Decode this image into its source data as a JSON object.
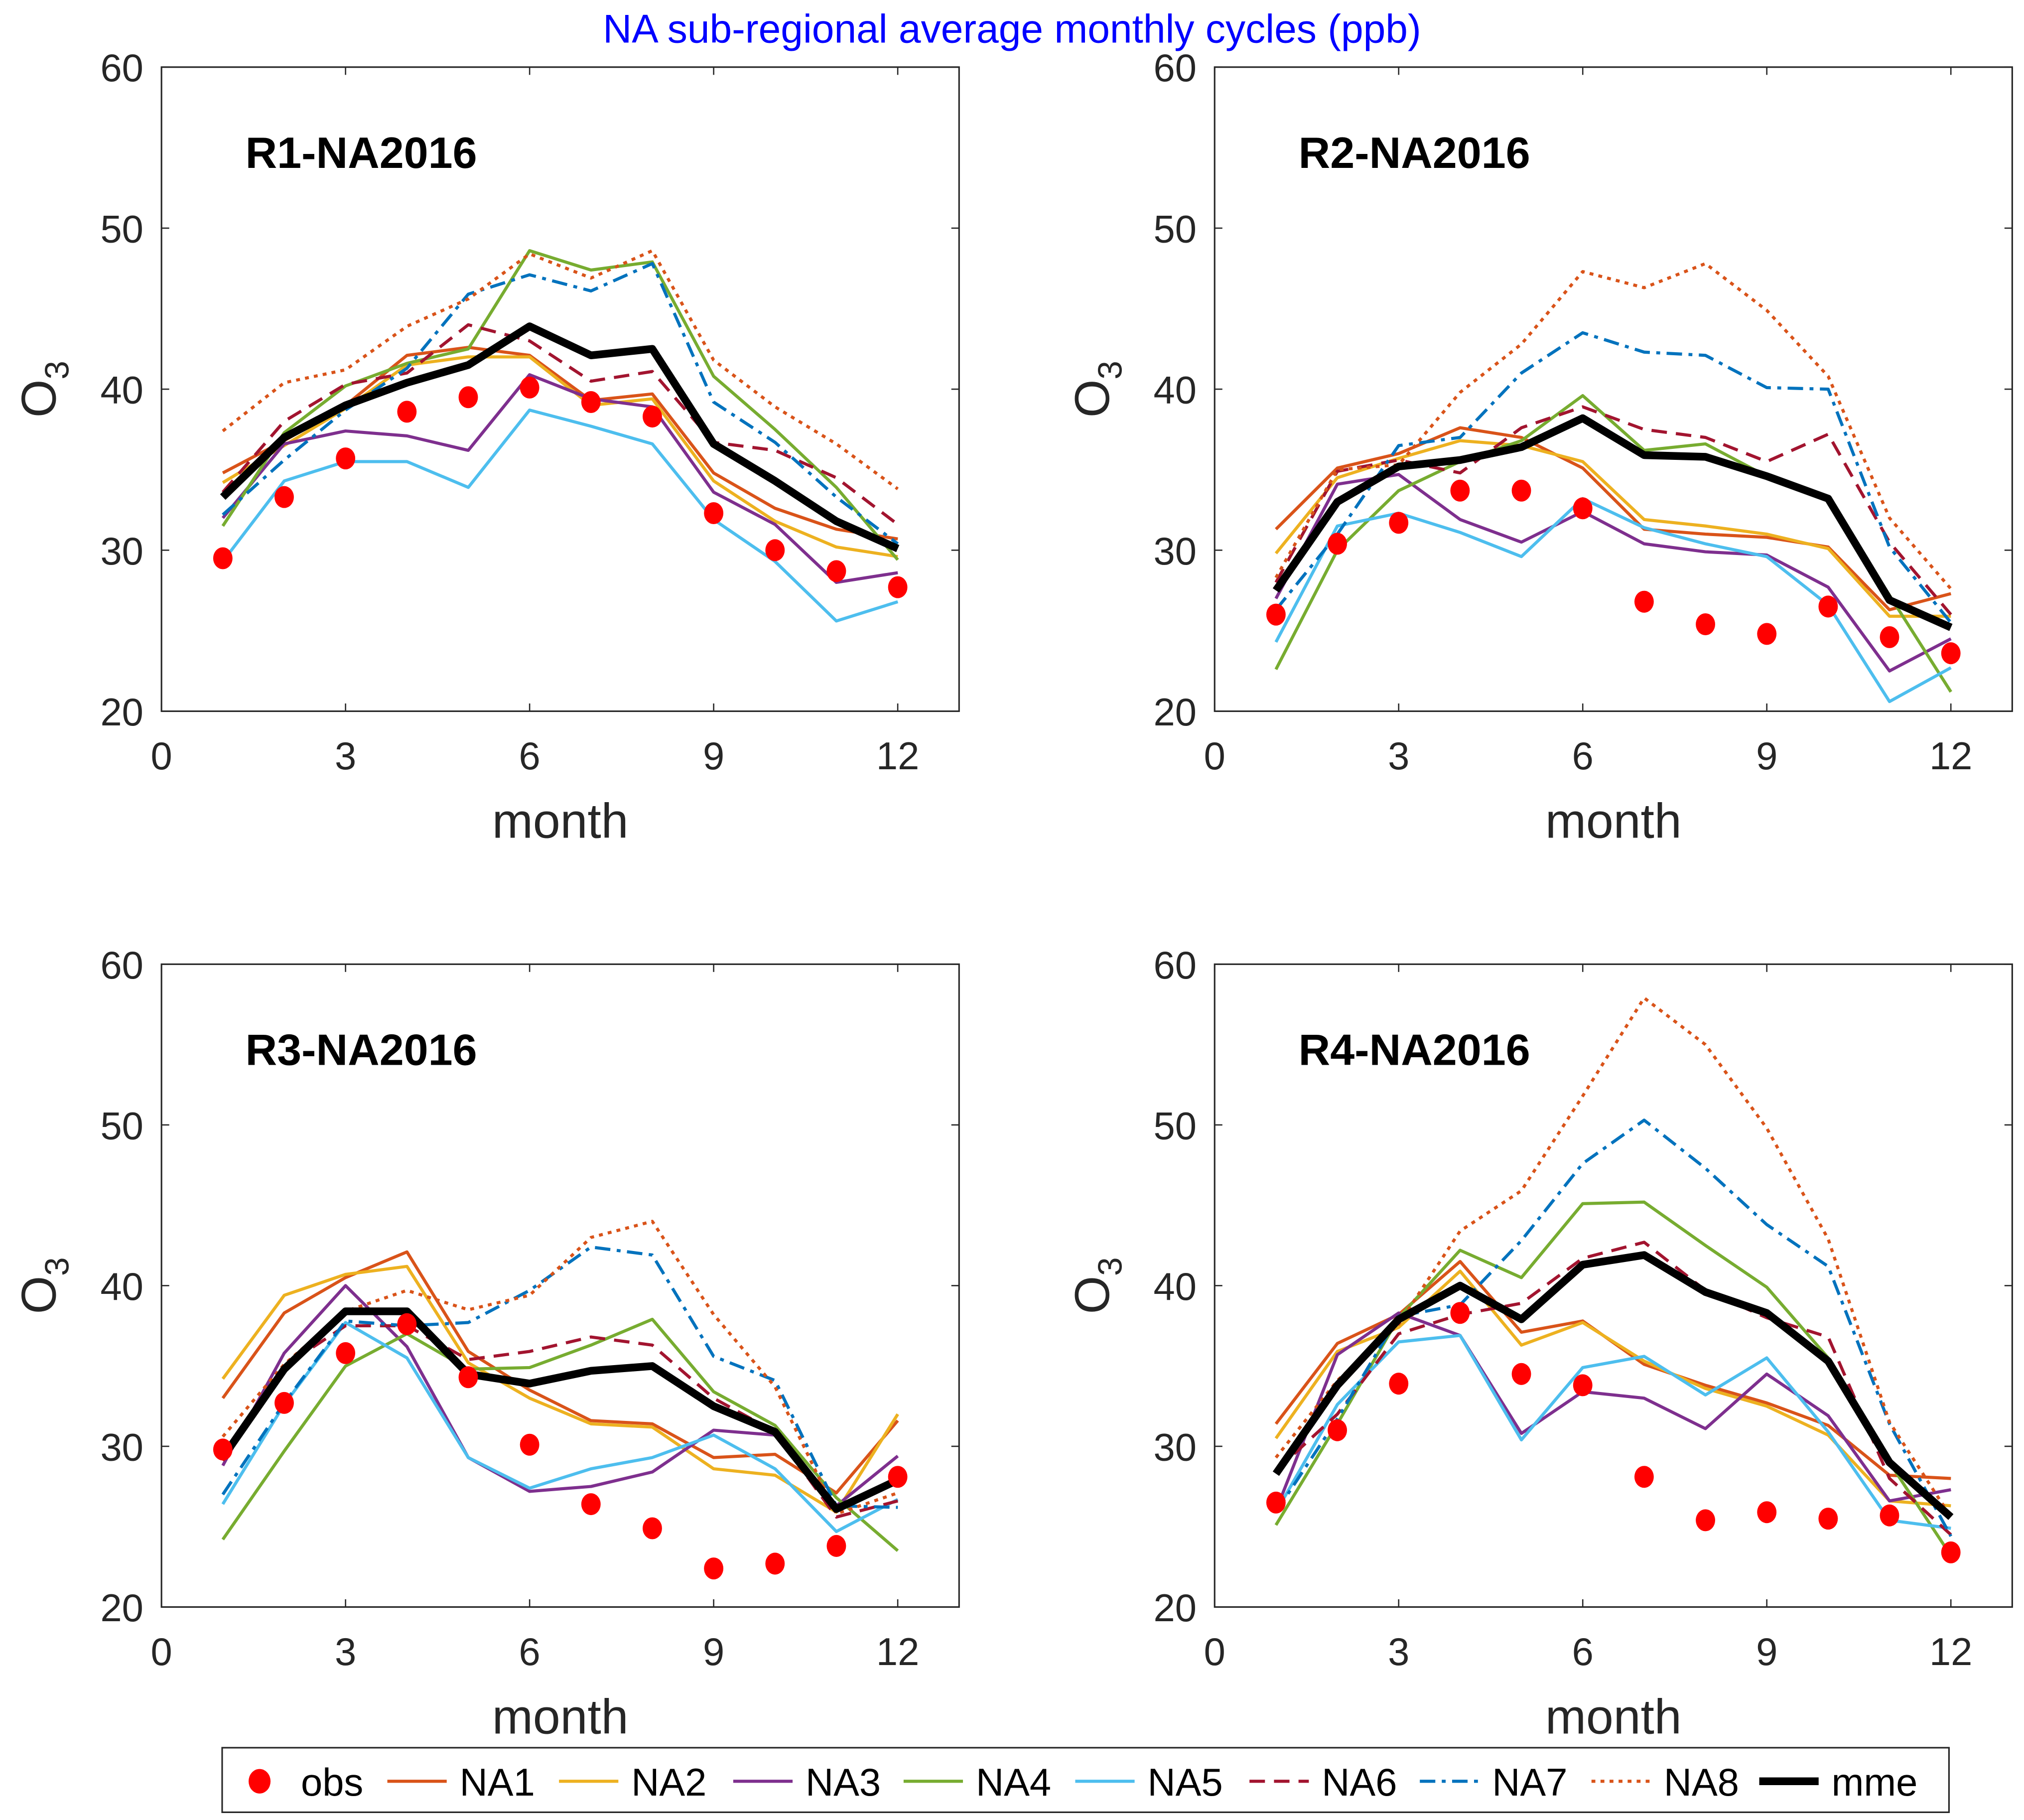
{
  "title": "NA sub-regional average monthly cycles (ppb)",
  "axes_common": {
    "xlabel": "month",
    "ylabel": "O3",
    "ylabel_main": "O",
    "ylabel_sub": "3",
    "xlim": [
      0,
      13
    ],
    "ylim": [
      20,
      60
    ],
    "xticks": [
      "0",
      "3",
      "6",
      "9",
      "12"
    ],
    "yticks": [
      "20",
      "30",
      "40",
      "50",
      "60"
    ],
    "grid": false
  },
  "legend": {
    "placement": "bottom",
    "entries": [
      "obs",
      "NA1",
      "NA2",
      "NA3",
      "NA4",
      "NA5",
      "NA6",
      "NA7",
      "NA8",
      "mme"
    ]
  },
  "series_style": {
    "obs": {
      "color": "#ff0000",
      "style": "marker"
    },
    "NA1": {
      "color": "#D95319",
      "style": "solid"
    },
    "NA2": {
      "color": "#EDB120",
      "style": "solid"
    },
    "NA3": {
      "color": "#7E2F8E",
      "style": "solid"
    },
    "NA4": {
      "color": "#77AC30",
      "style": "solid"
    },
    "NA5": {
      "color": "#4DBEEE",
      "style": "solid"
    },
    "NA6": {
      "color": "#A2142F",
      "style": "dashed"
    },
    "NA7": {
      "color": "#0072BD",
      "style": "dash-dot"
    },
    "NA8": {
      "color": "#D95319",
      "style": "dotted"
    },
    "mme": {
      "color": "#000000",
      "style": "thick"
    }
  },
  "chart_data": [
    {
      "type": "line",
      "title": "R1-NA2016",
      "x": [
        1,
        2,
        3,
        4,
        5,
        6,
        7,
        8,
        9,
        10,
        11,
        12
      ],
      "series": [
        {
          "name": "obs",
          "values": [
            29.5,
            33.3,
            35.7,
            38.6,
            39.5,
            40.1,
            39.2,
            38.3,
            32.3,
            30.0,
            28.7,
            27.7
          ]
        },
        {
          "name": "NA1",
          "values": [
            34.8,
            36.8,
            39.0,
            42.1,
            42.6,
            42.1,
            39.3,
            39.7,
            34.8,
            32.6,
            31.3,
            30.7
          ]
        },
        {
          "name": "NA2",
          "values": [
            34.2,
            36.5,
            38.8,
            41.5,
            42.0,
            42.0,
            39.0,
            39.4,
            34.3,
            31.8,
            30.2,
            29.6
          ]
        },
        {
          "name": "NA3",
          "values": [
            32.0,
            36.6,
            37.4,
            37.1,
            36.2,
            40.9,
            39.4,
            38.9,
            33.6,
            31.6,
            28.0,
            28.6
          ]
        },
        {
          "name": "NA4",
          "values": [
            31.5,
            37.3,
            40.2,
            41.6,
            42.5,
            48.6,
            47.4,
            47.9,
            40.8,
            37.5,
            33.9,
            29.4
          ]
        },
        {
          "name": "NA5",
          "values": [
            29.3,
            34.3,
            35.5,
            35.5,
            33.9,
            38.7,
            37.7,
            36.6,
            31.9,
            29.3,
            25.6,
            26.8
          ]
        },
        {
          "name": "NA6",
          "values": [
            33.6,
            38.0,
            40.3,
            41.0,
            44.0,
            43.0,
            40.5,
            41.1,
            36.7,
            36.2,
            34.5,
            31.6
          ]
        },
        {
          "name": "NA7",
          "values": [
            32.2,
            35.6,
            38.7,
            41.3,
            45.9,
            47.1,
            46.1,
            47.8,
            39.2,
            36.7,
            33.3,
            30.4
          ]
        },
        {
          "name": "NA8",
          "values": [
            37.4,
            40.4,
            41.2,
            43.9,
            45.6,
            48.4,
            46.9,
            48.6,
            41.8,
            38.9,
            36.6,
            33.8
          ]
        },
        {
          "name": "mme",
          "values": [
            33.3,
            37.0,
            39.0,
            40.4,
            41.5,
            43.9,
            42.1,
            42.5,
            36.6,
            34.3,
            31.8,
            30.1
          ]
        }
      ]
    },
    {
      "type": "line",
      "title": "R2-NA2016",
      "x": [
        1,
        2,
        3,
        4,
        5,
        6,
        7,
        8,
        9,
        10,
        11,
        12
      ],
      "series": [
        {
          "name": "obs",
          "values": [
            26.0,
            30.4,
            31.7,
            33.7,
            33.7,
            32.6,
            26.8,
            25.4,
            24.8,
            26.5,
            24.6,
            23.6
          ]
        },
        {
          "name": "NA1",
          "values": [
            31.3,
            35.1,
            36.0,
            37.6,
            37.0,
            35.1,
            31.3,
            31.0,
            30.8,
            30.2,
            26.3,
            27.3
          ]
        },
        {
          "name": "NA2",
          "values": [
            29.8,
            34.5,
            35.7,
            36.8,
            36.5,
            35.5,
            31.9,
            31.5,
            31.0,
            30.1,
            25.9,
            25.9
          ]
        },
        {
          "name": "NA3",
          "values": [
            27.0,
            34.1,
            34.7,
            31.9,
            30.5,
            32.4,
            30.4,
            29.9,
            29.7,
            27.7,
            22.5,
            24.5
          ]
        },
        {
          "name": "NA4",
          "values": [
            22.6,
            30.0,
            33.7,
            35.5,
            36.8,
            39.6,
            36.2,
            36.6,
            34.6,
            33.2,
            27.2,
            21.2
          ]
        },
        {
          "name": "NA5",
          "values": [
            24.3,
            31.5,
            32.3,
            31.1,
            29.6,
            33.2,
            31.4,
            30.4,
            29.6,
            26.6,
            20.6,
            22.7
          ]
        },
        {
          "name": "NA6",
          "values": [
            28.0,
            34.9,
            35.6,
            34.8,
            37.6,
            38.9,
            37.5,
            37.0,
            35.5,
            37.2,
            30.5,
            26.0
          ]
        },
        {
          "name": "NA7",
          "values": [
            26.3,
            31.0,
            36.5,
            37.0,
            41.0,
            43.5,
            42.3,
            42.1,
            40.1,
            40.0,
            30.2,
            25.5
          ]
        },
        {
          "name": "NA8",
          "values": [
            28.3,
            35.0,
            35.3,
            39.8,
            42.8,
            47.3,
            46.3,
            47.8,
            44.9,
            40.8,
            32.0,
            27.6
          ]
        },
        {
          "name": "mme",
          "values": [
            27.5,
            33.0,
            35.2,
            35.6,
            36.4,
            38.2,
            35.9,
            35.8,
            34.6,
            33.2,
            26.9,
            25.2
          ]
        }
      ]
    },
    {
      "type": "line",
      "title": "R3-NA2016",
      "x": [
        1,
        2,
        3,
        4,
        5,
        6,
        7,
        8,
        9,
        10,
        11,
        12
      ],
      "series": [
        {
          "name": "obs",
          "values": [
            29.8,
            32.7,
            35.8,
            37.6,
            34.3,
            30.1,
            26.4,
            24.9,
            22.4,
            22.7,
            23.8,
            28.1
          ]
        },
        {
          "name": "NA1",
          "values": [
            33.0,
            38.3,
            40.5,
            42.1,
            35.9,
            33.5,
            31.6,
            31.4,
            29.3,
            29.5,
            27.1,
            31.6
          ]
        },
        {
          "name": "NA2",
          "values": [
            34.2,
            39.4,
            40.7,
            41.2,
            35.2,
            33.0,
            31.4,
            31.2,
            28.6,
            28.2,
            25.9,
            32.0
          ]
        },
        {
          "name": "NA3",
          "values": [
            28.8,
            35.8,
            40.0,
            36.2,
            29.3,
            27.2,
            27.5,
            28.4,
            31.0,
            30.7,
            26.3,
            29.4
          ]
        },
        {
          "name": "NA4",
          "values": [
            24.2,
            29.7,
            35.0,
            37.0,
            34.8,
            34.9,
            36.3,
            37.9,
            33.4,
            31.3,
            26.8,
            23.5
          ]
        },
        {
          "name": "NA5",
          "values": [
            26.4,
            32.6,
            37.7,
            35.5,
            29.3,
            27.4,
            28.6,
            29.3,
            30.7,
            28.6,
            24.7,
            26.7
          ]
        },
        {
          "name": "NA6",
          "values": [
            29.1,
            35.0,
            37.5,
            37.5,
            35.4,
            35.9,
            36.8,
            36.3,
            33.0,
            30.9,
            25.6,
            26.6
          ]
        },
        {
          "name": "NA7",
          "values": [
            27.0,
            32.7,
            37.8,
            37.5,
            37.7,
            39.7,
            42.4,
            41.9,
            35.6,
            34.1,
            26.3,
            26.2
          ]
        },
        {
          "name": "NA8",
          "values": [
            30.6,
            35.1,
            38.4,
            39.7,
            38.5,
            39.4,
            43.0,
            44.0,
            38.2,
            33.7,
            25.8,
            27.1
          ]
        },
        {
          "name": "mme",
          "values": [
            29.3,
            34.8,
            38.4,
            38.4,
            34.5,
            33.9,
            34.7,
            35.0,
            32.5,
            30.9,
            26.1,
            27.9
          ]
        }
      ]
    },
    {
      "type": "line",
      "title": "R4-NA2016",
      "x": [
        1,
        2,
        3,
        4,
        5,
        6,
        7,
        8,
        9,
        10,
        11,
        12
      ],
      "series": [
        {
          "name": "obs",
          "values": [
            26.5,
            31.0,
            33.9,
            38.3,
            34.5,
            33.8,
            28.1,
            25.4,
            25.9,
            25.5,
            25.7,
            23.4
          ]
        },
        {
          "name": "NA1",
          "values": [
            31.4,
            36.4,
            38.2,
            41.5,
            37.1,
            37.8,
            35.1,
            33.8,
            32.7,
            31.3,
            28.2,
            28.0
          ]
        },
        {
          "name": "NA2",
          "values": [
            30.5,
            35.9,
            37.4,
            40.9,
            36.3,
            37.7,
            35.3,
            33.6,
            32.5,
            30.7,
            26.6,
            26.3
          ]
        },
        {
          "name": "NA3",
          "values": [
            26.0,
            35.7,
            38.3,
            36.9,
            30.8,
            33.4,
            33.0,
            31.1,
            34.5,
            31.9,
            26.6,
            27.3
          ]
        },
        {
          "name": "NA4",
          "values": [
            25.1,
            31.4,
            38.0,
            42.2,
            40.5,
            45.1,
            45.2,
            42.5,
            39.9,
            35.5,
            29.0,
            23.2
          ]
        },
        {
          "name": "NA5",
          "values": [
            25.9,
            32.6,
            36.5,
            36.9,
            30.4,
            34.9,
            35.6,
            33.2,
            35.5,
            30.9,
            25.4,
            24.9
          ]
        },
        {
          "name": "NA6",
          "values": [
            28.5,
            32.0,
            37.0,
            38.2,
            38.9,
            41.7,
            42.7,
            39.7,
            38.0,
            36.8,
            28.0,
            24.5
          ]
        },
        {
          "name": "NA7",
          "values": [
            25.9,
            31.7,
            38.1,
            38.8,
            42.8,
            47.6,
            50.3,
            47.3,
            43.8,
            41.2,
            31.4,
            24.4
          ]
        },
        {
          "name": "NA8",
          "values": [
            29.3,
            34.1,
            37.6,
            43.4,
            45.9,
            51.8,
            57.9,
            55.0,
            49.8,
            42.9,
            31.5,
            25.6
          ]
        },
        {
          "name": "mme",
          "values": [
            28.3,
            33.8,
            37.9,
            40.0,
            37.9,
            41.3,
            41.9,
            39.6,
            38.3,
            35.3,
            29.0,
            25.6
          ]
        }
      ]
    }
  ]
}
